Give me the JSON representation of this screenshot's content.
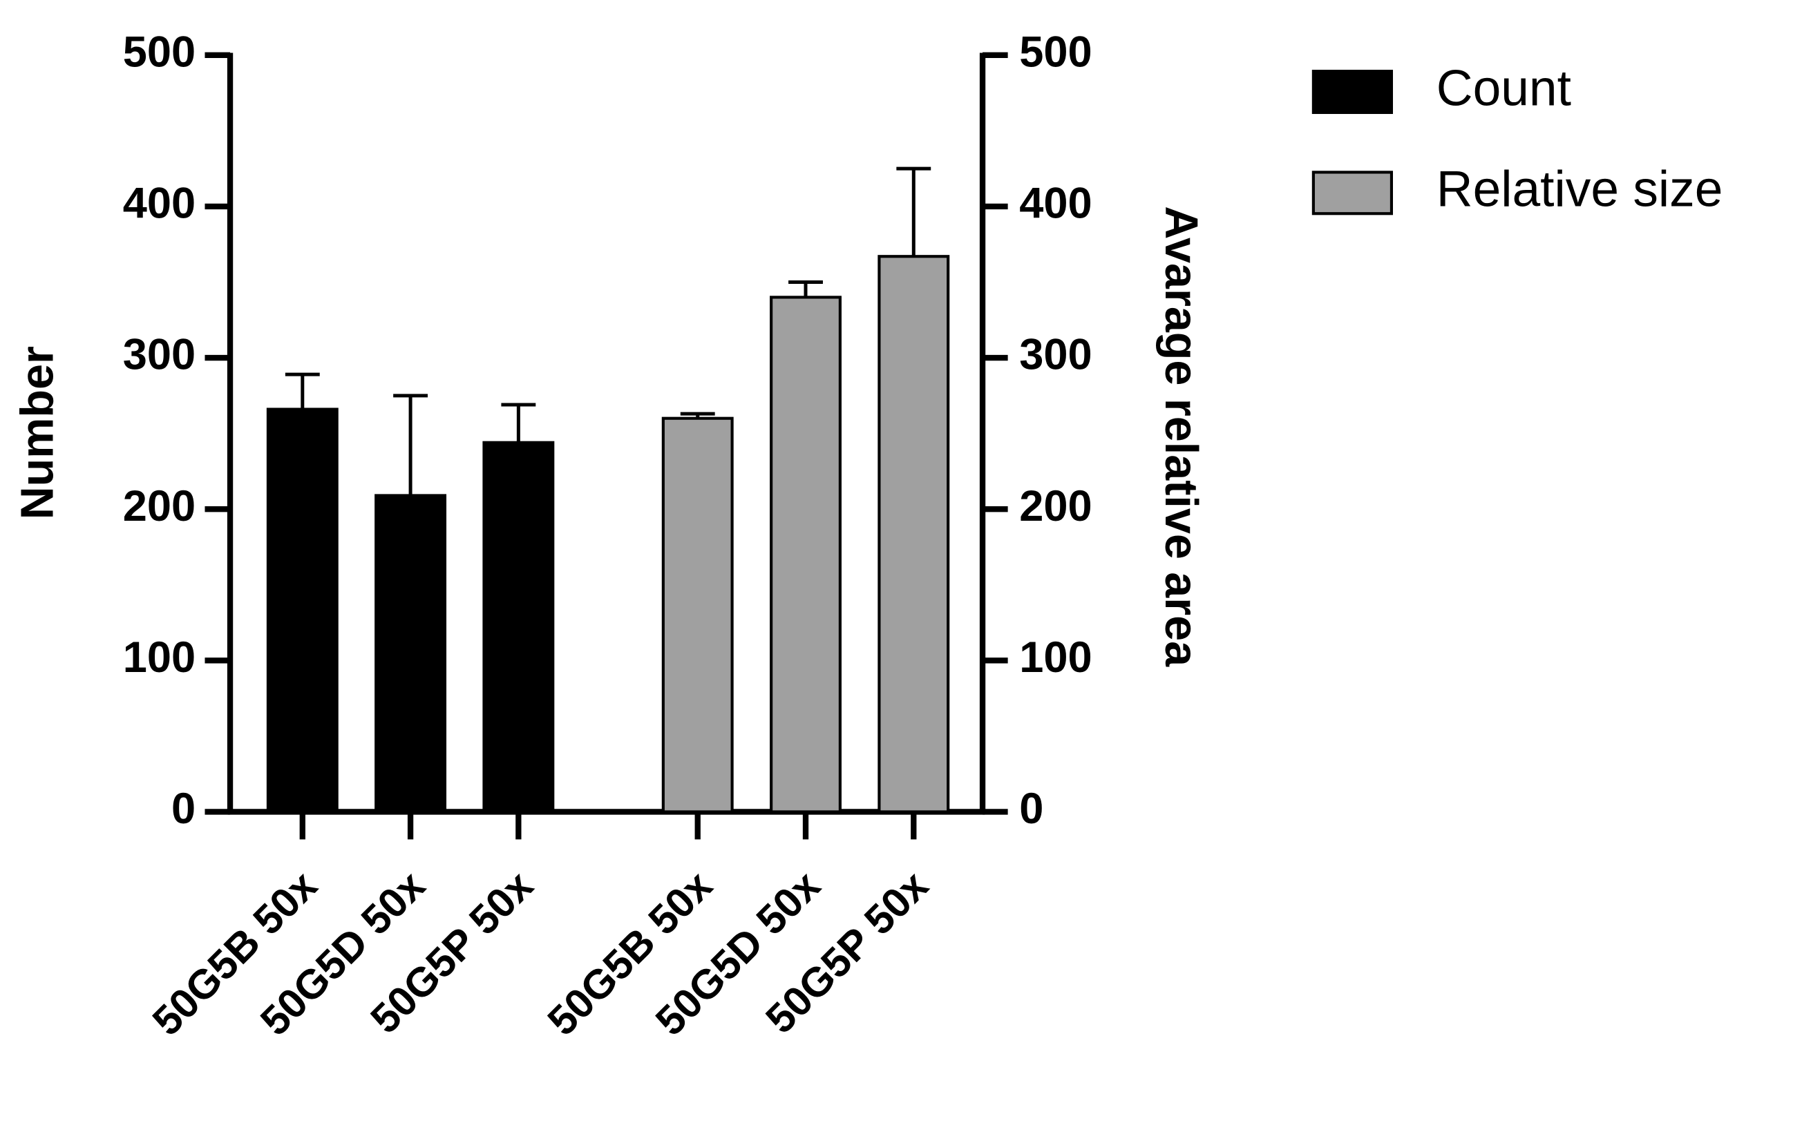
{
  "chart_data": {
    "type": "bar",
    "categories": [
      "50G5B 50x",
      "50G5D 50x",
      "50G5P 50x",
      "50G5B 50x",
      "50G5D 50x",
      "50G5P 50x"
    ],
    "series": [
      {
        "name": "Count",
        "color": "#000000",
        "values": [
          266,
          209,
          244,
          null,
          null,
          null
        ],
        "errors": [
          23,
          66,
          25,
          null,
          null,
          null
        ]
      },
      {
        "name": "Relative size",
        "color": "#a0a0a0",
        "axis": "y2",
        "values": [
          null,
          null,
          null,
          260,
          340,
          367
        ],
        "errors": [
          null,
          null,
          null,
          3,
          10,
          58
        ]
      }
    ],
    "y_label": "Number",
    "y2_label": "Avarage relative area",
    "ylim": [
      0,
      500
    ],
    "yticks": [
      0,
      100,
      200,
      300,
      400,
      500
    ],
    "y2lim": [
      0,
      500
    ],
    "y2ticks": [
      0,
      100,
      200,
      300,
      400,
      500
    ],
    "legend": "right"
  }
}
